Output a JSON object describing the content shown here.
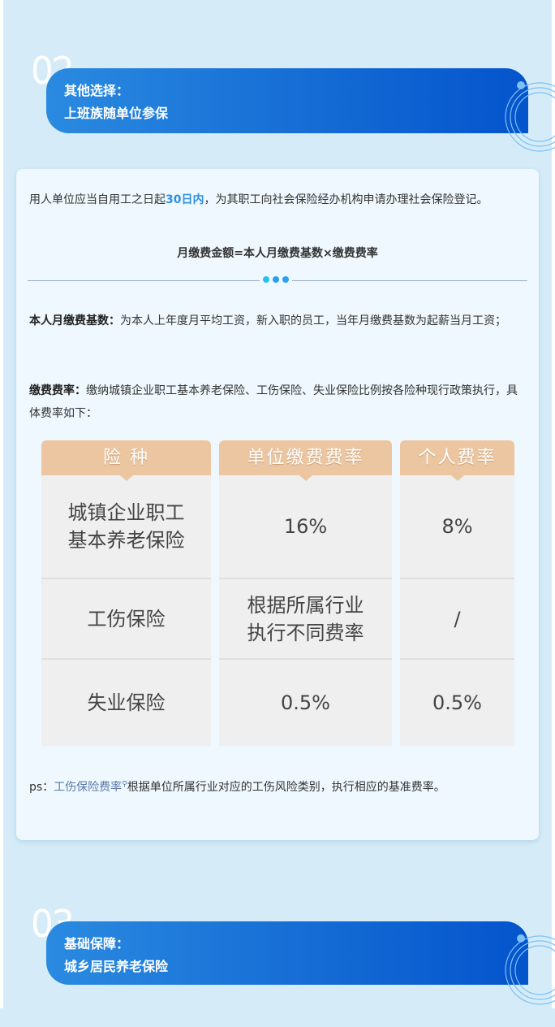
{
  "section2": {
    "number": "02",
    "line1": "其他选择：",
    "line2": "上班族随单位参保"
  },
  "card": {
    "intro_pre": "用人单位应当自用工之日起",
    "intro_highlight": "30日内",
    "intro_post": "，为其职工向社会保险经办机构申请办理社会保险登记。",
    "formula": "月缴费金额=本人月缴费基数×缴费费率",
    "base_label": "本人月缴费基数：",
    "base_text": "为本人上年度月平均工资，新入职的员工，当年月缴费基数为起薪当月工资；",
    "rate_label": "缴费费率：",
    "rate_text": "缴纳城镇企业职工基本养老保险、工伤保险、失业保险比例按各险种现行政策执行，具体费率如下：",
    "table": {
      "headers": [
        "险 种",
        "单位缴费费率",
        "个人费率"
      ],
      "rows": [
        [
          "城镇企业职工\n基本养老保险",
          "16%",
          "8%"
        ],
        [
          "工伤保险",
          "根据所属行业\n执行不同费率",
          "/"
        ],
        [
          "失业保险",
          "0.5%",
          "0.5%"
        ]
      ]
    },
    "ps_label": "ps：",
    "ps_link": "工伤保险费率",
    "ps_text": "根据单位所属行业对应的工伤风险类别，执行相应的基准费率。"
  },
  "section3": {
    "number": "03",
    "line1": "基础保障：",
    "line2": "城乡居民养老保险"
  },
  "colors": {
    "banner_start": "#2a8ae0",
    "banner_end": "#0454cc",
    "highlight": "#2f8fe0",
    "table_header": "#ecc6a0"
  }
}
